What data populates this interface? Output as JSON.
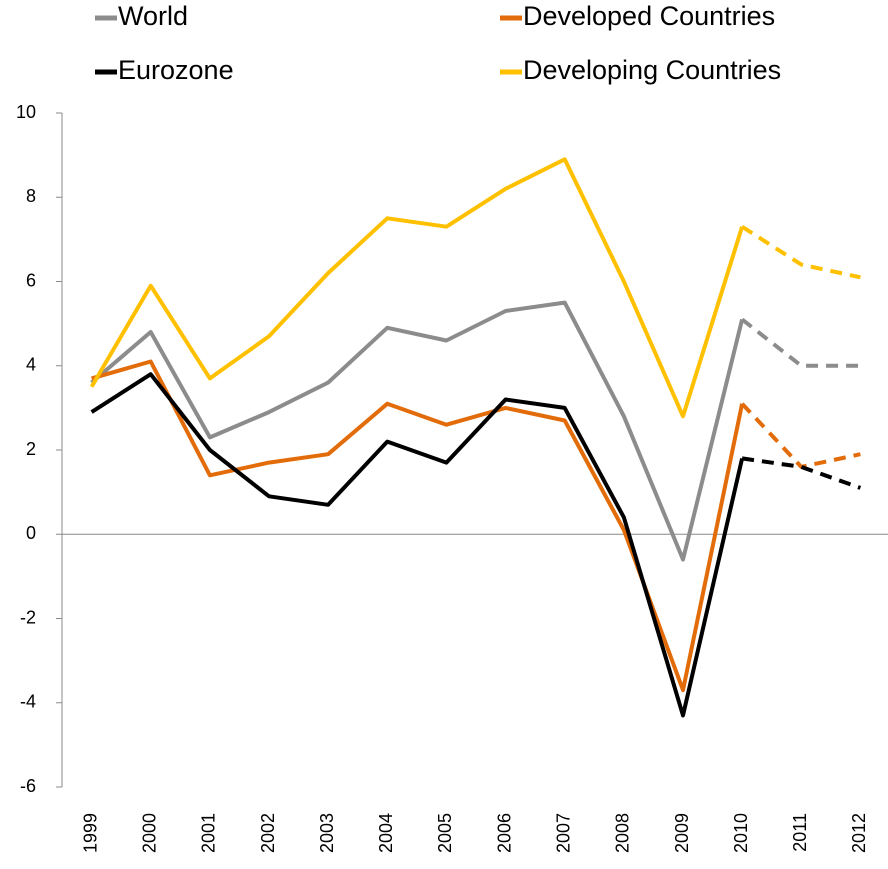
{
  "chart_data": {
    "type": "line",
    "categories": [
      "1999",
      "2000",
      "2001",
      "2002",
      "2003",
      "2004",
      "2005",
      "2006",
      "2007",
      "2008",
      "2009",
      "2010",
      "2011",
      "2012"
    ],
    "series": [
      {
        "name": "World",
        "color": "#8c8c8c",
        "values": [
          3.6,
          4.8,
          2.3,
          2.9,
          3.6,
          4.9,
          4.6,
          5.3,
          5.5,
          2.8,
          -0.6,
          5.1,
          4.0,
          4.0
        ]
      },
      {
        "name": "Developed Countries",
        "color": "#e36c0a",
        "values": [
          3.7,
          4.1,
          1.4,
          1.7,
          1.9,
          3.1,
          2.6,
          3.0,
          2.7,
          0.1,
          -3.7,
          3.1,
          1.6,
          1.9
        ]
      },
      {
        "name": "Eurozone",
        "color": "#000000",
        "values": [
          2.9,
          3.8,
          2.0,
          0.9,
          0.7,
          2.2,
          1.7,
          3.2,
          3.0,
          0.4,
          -4.3,
          1.8,
          1.6,
          1.1
        ]
      },
      {
        "name": "Developing Countries",
        "color": "#ffc000",
        "values": [
          3.5,
          5.9,
          3.7,
          4.7,
          6.2,
          7.5,
          7.3,
          8.2,
          8.9,
          6.0,
          2.8,
          7.3,
          6.4,
          6.1
        ]
      }
    ],
    "dashed_from": "2010",
    "ylim": [
      -6,
      10
    ],
    "yticks": [
      -6,
      -4,
      -2,
      0,
      2,
      4,
      6,
      8,
      10
    ],
    "legend": "top"
  }
}
